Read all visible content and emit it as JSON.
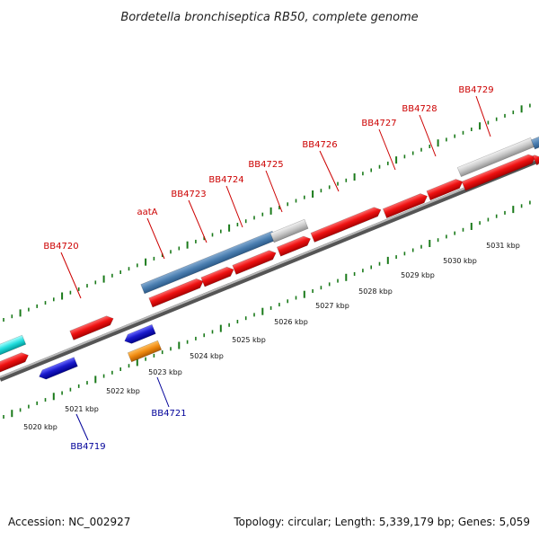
{
  "title": "Bordetella bronchiseptica RB50, complete genome",
  "footer": {
    "accession": "Accession: NC_002927",
    "summary": "Topology: circular; Length: 5,339,179 bp; Genes: 5,059"
  },
  "colors": {
    "forward_cds": "#e8101a",
    "reverse_cds": "#1a1acc",
    "rna": "#f08a10",
    "pseudo": "#c0c0c0",
    "operon": "#4a7eb0",
    "other": "#22dddd",
    "backbone": "#808080",
    "tick": "#1a7a1a",
    "label_forward": "#cc0000",
    "label_reverse": "#000099"
  },
  "gene_labels_forward": [
    "BB4720",
    "aatA",
    "BB4723",
    "BB4724",
    "BB4725",
    "BB4726",
    "BB4727",
    "BB4728",
    "BB4729"
  ],
  "gene_labels_reverse": [
    "BB4719",
    "BB4721"
  ],
  "kbp_ticks": [
    "5020 kbp",
    "5021 kbp",
    "5022 kbp",
    "5023 kbp",
    "5024 kbp",
    "5025 kbp",
    "5026 kbp",
    "5027 kbp",
    "5028 kbp",
    "5029 kbp",
    "5030 kbp",
    "5031 kbp"
  ]
}
